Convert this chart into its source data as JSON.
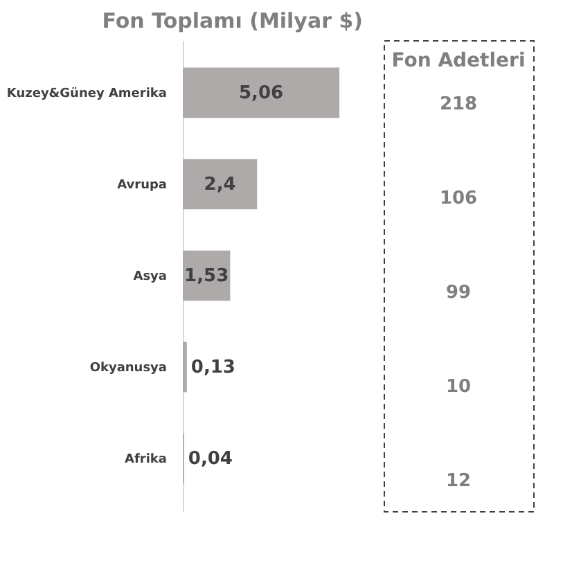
{
  "chart_data": [
    {
      "type": "bar",
      "orientation": "horizontal",
      "title": "Fon Toplamı (Milyar $)",
      "categories": [
        "Kuzey&Güney Amerika",
        "Avrupa",
        "Asya",
        "Okyanusya",
        "Afrika"
      ],
      "values": [
        5.06,
        2.4,
        1.53,
        0.13,
        0.04
      ],
      "color": "#aeaaaa",
      "value_labels": [
        "5,06",
        "2,4",
        "1,53",
        "0,13",
        "0,04"
      ]
    },
    {
      "type": "other",
      "title": "Fon Adetleri",
      "categories": [
        null,
        null,
        null,
        null,
        null
      ],
      "values": [
        218,
        106,
        99,
        10,
        12
      ],
      "data_labels": true
    }
  ]
}
